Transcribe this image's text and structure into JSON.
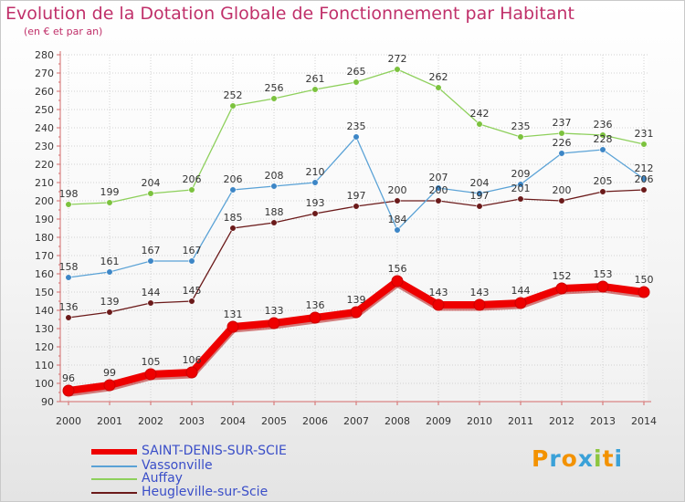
{
  "title": "Evolution de la Dotation Globale de Fonctionnement par Habitant",
  "subtitle": "(en € et par an)",
  "logo": {
    "letters": [
      "P",
      "r",
      "o",
      "x",
      "i",
      "t",
      "i"
    ],
    "colors": [
      "#f39200",
      "#3aa1d8",
      "#f39200",
      "#3aa1d8",
      "#8dc63f",
      "#f39200",
      "#3aa1d8"
    ]
  },
  "chart_data": {
    "type": "line",
    "title": "Evolution de la Dotation Globale de Fonctionnement par Habitant",
    "ylabel": "(en € et par an)",
    "xlabel": "",
    "x": [
      "2000",
      "2001",
      "2002",
      "2003",
      "2004",
      "2005",
      "2006",
      "2007",
      "2008",
      "2009",
      "2010",
      "2011",
      "2012",
      "2013",
      "2014"
    ],
    "ylim": [
      90,
      280
    ],
    "yticks": [
      "90",
      "100",
      "110",
      "120",
      "130",
      "140",
      "150",
      "160",
      "170",
      "180",
      "190",
      "200",
      "210",
      "220",
      "230",
      "240",
      "250",
      "260",
      "270",
      "280"
    ],
    "grid": true,
    "legend": "bottom-left",
    "series": [
      {
        "name": "Heugleville-sur-Scie",
        "color": "#6b1a1a",
        "marker": "#6b1a1a",
        "values": [
          136,
          139,
          144,
          145,
          185,
          188,
          193,
          197,
          200,
          200,
          197,
          201,
          200,
          205,
          206
        ],
        "labels": [
          "136",
          "139",
          "144",
          "145",
          "185",
          "188",
          "193",
          "197",
          "200",
          "200",
          "197",
          "201",
          "200",
          "205",
          "206"
        ]
      },
      {
        "name": "Auffay",
        "color": "#8ed05c",
        "marker": "#7cc23e",
        "values": [
          198,
          199,
          204,
          206,
          252,
          256,
          261,
          265,
          272,
          262,
          242,
          235,
          237,
          236,
          231
        ],
        "labels": [
          "198",
          "199",
          "204",
          "206",
          "252",
          "256",
          "261",
          "265",
          "272",
          "262",
          "242",
          "235",
          "237",
          "236",
          "231"
        ]
      },
      {
        "name": "Vassonville",
        "color": "#5aa2d6",
        "marker": "#3d86c6",
        "values": [
          158,
          161,
          167,
          167,
          206,
          208,
          210,
          235,
          184,
          207,
          204,
          209,
          226,
          228,
          212
        ],
        "labels": [
          "158",
          "161",
          "167",
          "167",
          "206",
          "208",
          "210",
          "235",
          "184",
          "207",
          "204",
          "209",
          "226",
          "228",
          "212"
        ]
      },
      {
        "name": "SAINT-DENIS-SUR-SCIE",
        "color": "#ee0000",
        "marker": "#ee0000",
        "values": [
          96,
          99,
          105,
          106,
          131,
          133,
          136,
          139,
          156,
          143,
          143,
          144,
          152,
          153,
          150
        ],
        "labels": [
          "96",
          "99",
          "105",
          "106",
          "131",
          "133",
          "136",
          "139",
          "156",
          "143",
          "143",
          "144",
          "152",
          "153",
          "150"
        ]
      }
    ],
    "legend_order": [
      "SAINT-DENIS-SUR-SCIE",
      "Vassonville",
      "Auffay",
      "Heugleville-sur-Scie"
    ]
  }
}
